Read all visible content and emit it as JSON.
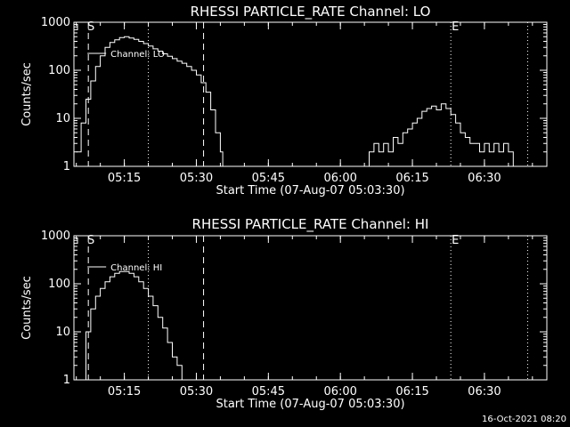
{
  "footer": {
    "timestamp": "16-Oct-2021 08:20"
  },
  "chart_data": [
    {
      "type": "line",
      "title": "RHESSI PARTICLE_RATE Channel: LO",
      "xlabel": "Start Time (07-Aug-07 05:03:30)",
      "ylabel": "Counts/sec",
      "yscale": "log",
      "ylim": [
        1,
        1000
      ],
      "xlim": [
        "05:04:30",
        "06:43:00"
      ],
      "x_tick_labels": [
        "05:15",
        "05:30",
        "05:45",
        "06:00",
        "06:15",
        "06:30"
      ],
      "y_tick_labels": [
        "1",
        "10",
        "100",
        "1000"
      ],
      "legend": "Channel: LO",
      "markers": {
        "start": "S",
        "end": "E"
      },
      "vlines_dashed": [
        "05:07:30",
        "05:31:30"
      ],
      "vlines_dotted": [
        "05:20:00",
        "06:23:00",
        "06:39:00"
      ],
      "segments": [
        {
          "x": [
            "05:05:00",
            "05:06:00",
            "05:07:00",
            "05:08:00",
            "05:09:00",
            "05:10:00",
            "05:11:00",
            "05:12:00",
            "05:13:00",
            "05:14:00",
            "05:15:00",
            "05:16:00",
            "05:17:00",
            "05:18:00",
            "05:19:00",
            "05:20:00",
            "05:21:00",
            "05:22:00",
            "05:23:00",
            "05:24:00",
            "05:25:00",
            "05:26:00",
            "05:27:00",
            "05:28:00",
            "05:29:00",
            "05:30:00",
            "05:31:00",
            "05:32:00",
            "05:33:00",
            "05:34:00",
            "05:35:00",
            "05:35:30"
          ],
          "y": [
            2,
            8,
            25,
            60,
            120,
            200,
            300,
            380,
            430,
            480,
            500,
            470,
            440,
            400,
            360,
            320,
            280,
            250,
            220,
            195,
            175,
            155,
            140,
            120,
            100,
            80,
            55,
            35,
            15,
            5,
            2,
            1
          ]
        },
        {
          "x": [
            "06:05:00",
            "06:06:00",
            "06:07:00",
            "06:08:00",
            "06:09:00",
            "06:10:00",
            "06:11:00",
            "06:12:00",
            "06:13:00",
            "06:14:00",
            "06:15:00",
            "06:16:00",
            "06:17:00",
            "06:18:00",
            "06:19:00",
            "06:20:00",
            "06:21:00",
            "06:22:00",
            "06:23:00",
            "06:24:00",
            "06:25:00",
            "06:26:00",
            "06:27:00",
            "06:28:00",
            "06:29:00",
            "06:30:00",
            "06:31:00",
            "06:32:00",
            "06:33:00",
            "06:34:00",
            "06:35:00",
            "06:36:00",
            "06:37:00"
          ],
          "y": [
            1,
            2,
            3,
            2,
            3,
            2,
            4,
            3,
            5,
            6,
            8,
            10,
            14,
            16,
            18,
            15,
            20,
            16,
            12,
            8,
            5,
            4,
            3,
            3,
            2,
            3,
            2,
            3,
            2,
            3,
            2,
            1,
            1
          ]
        }
      ]
    },
    {
      "type": "line",
      "title": "RHESSI PARTICLE_RATE Channel: HI",
      "xlabel": "Start Time (07-Aug-07 05:03:30)",
      "ylabel": "Counts/sec",
      "yscale": "log",
      "ylim": [
        1,
        1000
      ],
      "xlim": [
        "05:04:30",
        "06:43:00"
      ],
      "x_tick_labels": [
        "05:15",
        "05:30",
        "05:45",
        "06:00",
        "06:15",
        "06:30"
      ],
      "y_tick_labels": [
        "1",
        "10",
        "100",
        "1000"
      ],
      "legend": "Channel: HI",
      "markers": {
        "start": "S",
        "end": "E"
      },
      "vlines_dashed": [
        "05:07:30",
        "05:31:30"
      ],
      "vlines_dotted": [
        "05:20:00",
        "06:23:00",
        "06:39:00"
      ],
      "segments": [
        {
          "x": [
            "05:06:00",
            "05:07:00",
            "05:08:00",
            "05:09:00",
            "05:10:00",
            "05:11:00",
            "05:12:00",
            "05:13:00",
            "05:14:00",
            "05:15:00",
            "05:16:00",
            "05:17:00",
            "05:18:00",
            "05:19:00",
            "05:20:00",
            "05:21:00",
            "05:22:00",
            "05:23:00",
            "05:24:00",
            "05:25:00",
            "05:26:00",
            "05:27:00",
            "05:27:30"
          ],
          "y": [
            1,
            10,
            30,
            55,
            80,
            110,
            140,
            165,
            180,
            180,
            165,
            140,
            110,
            80,
            55,
            35,
            20,
            12,
            6,
            3,
            2,
            1,
            1
          ]
        }
      ]
    }
  ]
}
